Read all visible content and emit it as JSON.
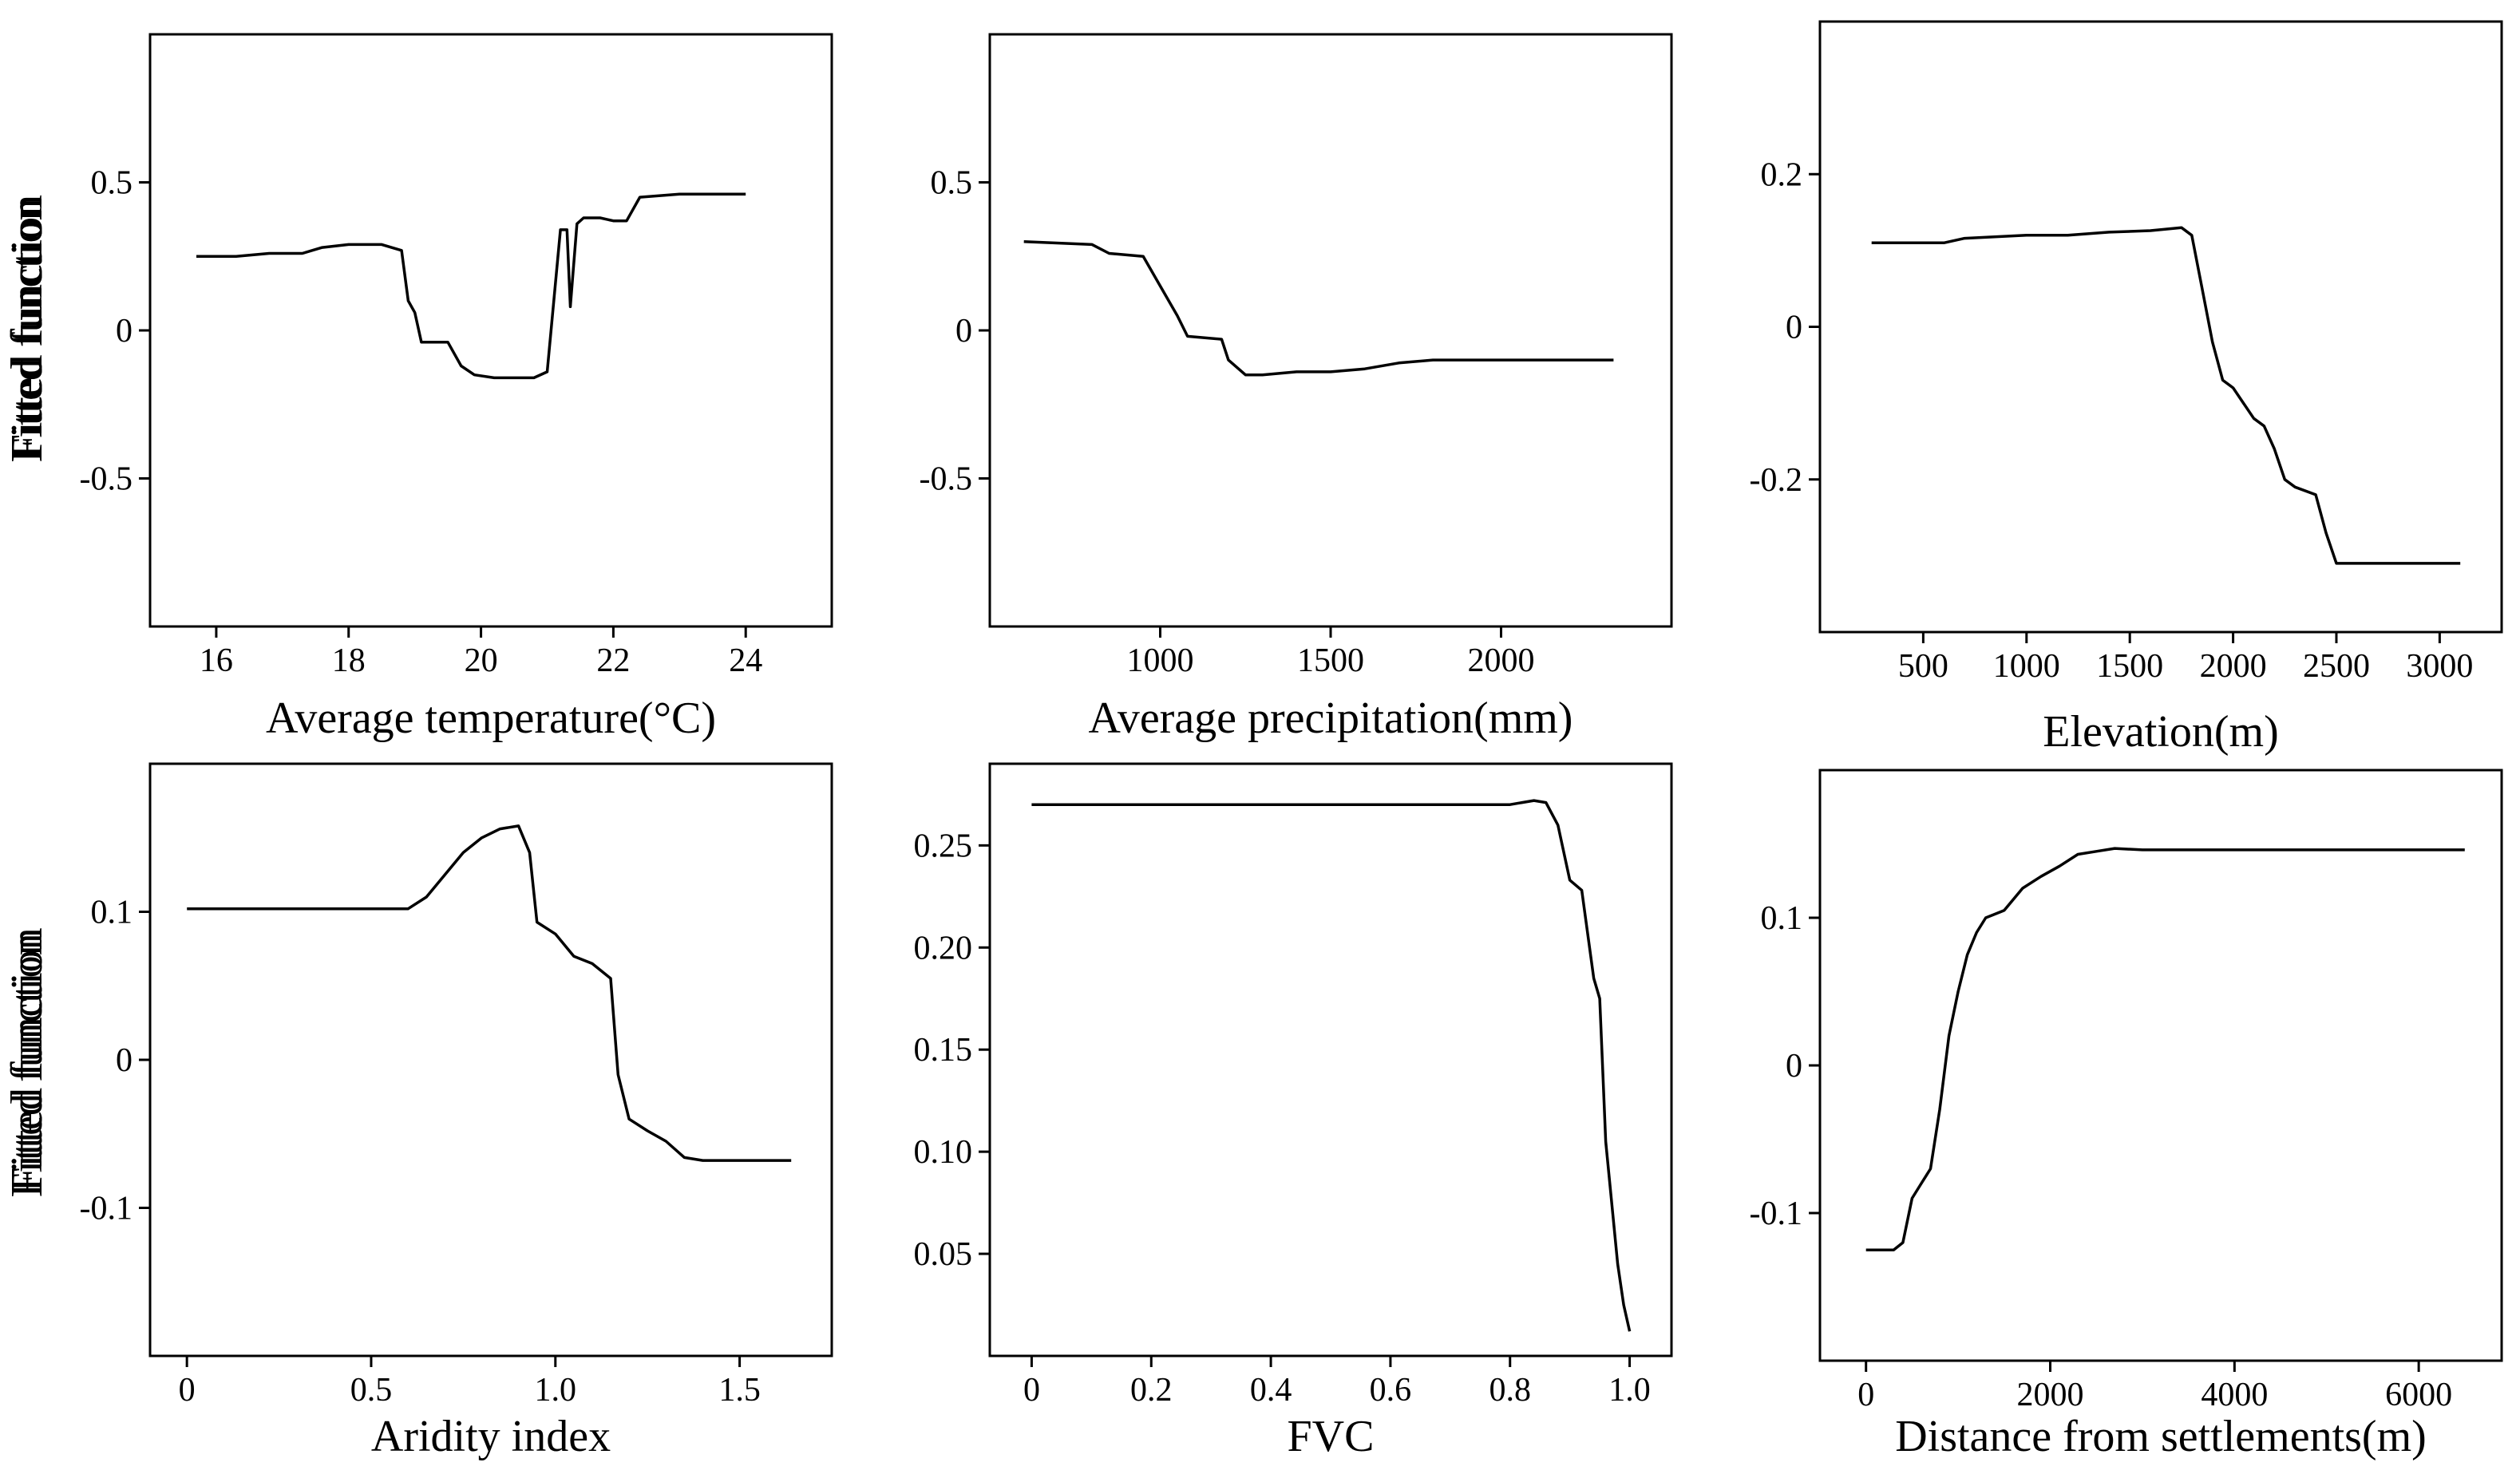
{
  "chart_data": [
    {
      "type": "line",
      "title": "",
      "xlabel": "Average temperature(°C)",
      "ylabel": "Fitted  function",
      "xlim": [
        15.0,
        25.3
      ],
      "ylim": [
        -1.0,
        1.0
      ],
      "xticks": [
        16,
        18,
        20,
        22,
        24
      ],
      "xtick_labels": [
        "16",
        "18",
        "20",
        "22",
        "24"
      ],
      "yticks": [
        -0.5,
        0,
        0.5
      ],
      "ytick_labels": [
        "-0.5",
        "0",
        "0.5"
      ],
      "series": [
        {
          "name": "Average temperature",
          "x": [
            15.7,
            16.3,
            16.8,
            17.3,
            17.6,
            18.0,
            18.5,
            18.8,
            18.9,
            19.0,
            19.1,
            19.2,
            19.5,
            19.7,
            19.9,
            20.2,
            20.5,
            20.8,
            21.0,
            21.1,
            21.2,
            21.3,
            21.35,
            21.45,
            21.55,
            21.8,
            22.0,
            22.2,
            22.4,
            23.0,
            24.0
          ],
          "y": [
            0.25,
            0.25,
            0.26,
            0.26,
            0.28,
            0.29,
            0.29,
            0.27,
            0.1,
            0.06,
            -0.04,
            -0.04,
            -0.04,
            -0.12,
            -0.15,
            -0.16,
            -0.16,
            -0.16,
            -0.14,
            0.1,
            0.34,
            0.34,
            0.08,
            0.36,
            0.38,
            0.38,
            0.37,
            0.37,
            0.45,
            0.46,
            0.46
          ]
        }
      ]
    },
    {
      "type": "line",
      "title": "",
      "xlabel": "Average precipitation(mm)",
      "ylabel": "Fitted  function",
      "xlim": [
        500,
        2500
      ],
      "ylim": [
        -1.0,
        1.0
      ],
      "xticks": [
        1000,
        1500,
        2000
      ],
      "xtick_labels": [
        "1000",
        "1500",
        "2000"
      ],
      "yticks": [
        -0.5,
        0,
        0.5
      ],
      "ytick_labels": [
        "-0.5",
        "0",
        "0.5"
      ],
      "series": [
        {
          "name": "Average precipitation",
          "x": [
            600,
            800,
            850,
            950,
            1000,
            1050,
            1080,
            1180,
            1200,
            1250,
            1300,
            1400,
            1500,
            1600,
            1700,
            1800,
            2000,
            2200,
            2330
          ],
          "y": [
            0.3,
            0.29,
            0.26,
            0.25,
            0.15,
            0.05,
            -0.02,
            -0.03,
            -0.1,
            -0.15,
            -0.15,
            -0.14,
            -0.14,
            -0.13,
            -0.11,
            -0.1,
            -0.1,
            -0.1,
            -0.1
          ]
        }
      ]
    },
    {
      "type": "line",
      "title": "",
      "xlabel": "Elevation(m)",
      "ylabel": "Fitted  function",
      "xlim": [
        0,
        3300
      ],
      "ylim": [
        -0.4,
        0.4
      ],
      "xticks": [
        500,
        1000,
        1500,
        2000,
        2500,
        3000
      ],
      "xtick_labels": [
        "500",
        "1000",
        "1500",
        "2000",
        "2500",
        "3000"
      ],
      "yticks": [
        -0.2,
        0,
        0.2
      ],
      "ytick_labels": [
        "-0.2",
        "0",
        "0.2"
      ],
      "series": [
        {
          "name": "Elevation",
          "x": [
            250,
            600,
            700,
            1000,
            1200,
            1400,
            1600,
            1750,
            1800,
            1850,
            1900,
            1950,
            2000,
            2050,
            2100,
            2150,
            2200,
            2250,
            2300,
            2400,
            2450,
            2500,
            3000,
            3100
          ],
          "y": [
            0.11,
            0.11,
            0.116,
            0.12,
            0.12,
            0.124,
            0.126,
            0.13,
            0.12,
            0.05,
            -0.02,
            -0.07,
            -0.08,
            -0.1,
            -0.12,
            -0.13,
            -0.16,
            -0.2,
            -0.21,
            -0.22,
            -0.27,
            -0.31,
            -0.31,
            -0.31
          ]
        }
      ]
    },
    {
      "type": "line",
      "title": "",
      "xlabel": "Aridity index",
      "ylabel": "Fitted  function",
      "xlim": [
        -0.1,
        1.75
      ],
      "ylim": [
        -0.2,
        0.2
      ],
      "xticks": [
        0,
        0.5,
        1.0,
        1.5
      ],
      "xtick_labels": [
        "0",
        "0.5",
        "1.0",
        "1.5"
      ],
      "yticks": [
        -0.1,
        0,
        0.1
      ],
      "ytick_labels": [
        "-0.1",
        "0",
        "0.1"
      ],
      "series": [
        {
          "name": "Aridity index",
          "x": [
            0,
            0.3,
            0.6,
            0.65,
            0.7,
            0.75,
            0.8,
            0.85,
            0.9,
            0.93,
            0.95,
            1.0,
            1.05,
            1.1,
            1.15,
            1.17,
            1.2,
            1.25,
            1.3,
            1.35,
            1.4,
            1.5,
            1.64
          ],
          "y": [
            0.102,
            0.102,
            0.102,
            0.11,
            0.125,
            0.14,
            0.15,
            0.156,
            0.158,
            0.14,
            0.093,
            0.085,
            0.07,
            0.065,
            0.055,
            -0.01,
            -0.04,
            -0.048,
            -0.055,
            -0.066,
            -0.068,
            -0.068,
            -0.068
          ]
        }
      ]
    },
    {
      "type": "line",
      "title": "",
      "xlabel": "FVC",
      "ylabel": "Fitted  function",
      "xlim": [
        -0.07,
        1.07
      ],
      "ylim": [
        0.0,
        0.29
      ],
      "xticks": [
        0,
        0.2,
        0.4,
        0.6,
        0.8,
        1.0
      ],
      "xtick_labels": [
        "0",
        "0.2",
        "0.4",
        "0.6",
        "0.8",
        "1.0"
      ],
      "yticks": [
        0.05,
        0.1,
        0.15,
        0.2,
        0.25
      ],
      "ytick_labels": [
        "0.05",
        "0.10",
        "0.15",
        "0.20",
        "0.25"
      ],
      "series": [
        {
          "name": "FVC",
          "x": [
            0,
            0.5,
            0.8,
            0.84,
            0.86,
            0.88,
            0.9,
            0.92,
            0.94,
            0.95,
            0.96,
            0.98,
            0.99,
            1.0
          ],
          "y": [
            0.27,
            0.27,
            0.27,
            0.272,
            0.271,
            0.26,
            0.233,
            0.228,
            0.185,
            0.175,
            0.105,
            0.045,
            0.025,
            0.012
          ]
        }
      ]
    },
    {
      "type": "line",
      "title": "",
      "xlabel": "Distance from settlements(m)",
      "ylabel": "Fitted  function",
      "xlim": [
        -500,
        6900
      ],
      "ylim": [
        -0.2,
        0.2
      ],
      "xticks": [
        0,
        2000,
        4000,
        6000
      ],
      "xtick_labels": [
        "0",
        "2000",
        "4000",
        "6000"
      ],
      "yticks": [
        -0.1,
        0,
        0.1
      ],
      "ytick_labels": [
        "-0.1",
        "0",
        "0.1"
      ],
      "series": [
        {
          "name": "Distance from settlements",
          "x": [
            0,
            300,
            400,
            500,
            600,
            700,
            800,
            900,
            1000,
            1100,
            1200,
            1300,
            1500,
            1700,
            1900,
            2100,
            2300,
            2500,
            2700,
            3000,
            4000,
            5000,
            6500
          ],
          "y": [
            -0.125,
            -0.125,
            -0.12,
            -0.09,
            -0.08,
            -0.07,
            -0.03,
            0.02,
            0.05,
            0.075,
            0.09,
            0.1,
            0.105,
            0.12,
            0.128,
            0.135,
            0.143,
            0.145,
            0.147,
            0.146,
            0.146,
            0.146,
            0.146
          ]
        }
      ]
    }
  ]
}
